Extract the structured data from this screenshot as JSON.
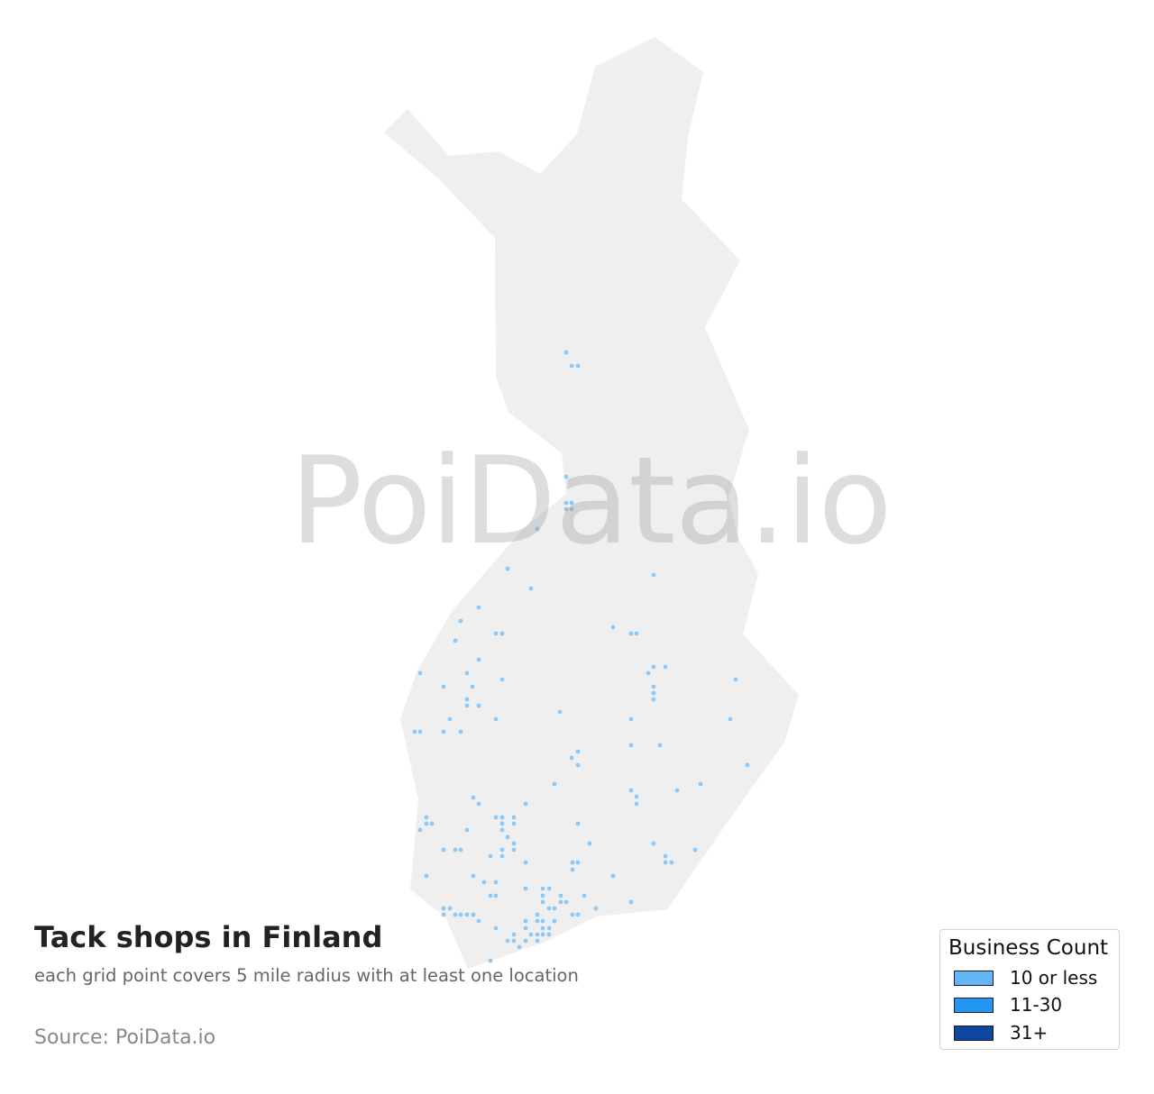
{
  "title": "Tack shops in Finland",
  "subtitle": "each grid point covers 5 mile radius with at least one location",
  "source": "Source: PoiData.io",
  "watermark": "PoiData.io",
  "map": {
    "region": "Finland",
    "land_color": "#efefef",
    "point_color": "#8ec9f5"
  },
  "legend": {
    "title": "Business Count",
    "items": [
      {
        "label": "10 or less",
        "color": "#64b5f6"
      },
      {
        "label": "11-30",
        "color": "#2196f3"
      },
      {
        "label": "31+",
        "color": "#0d47a1"
      }
    ]
  }
}
